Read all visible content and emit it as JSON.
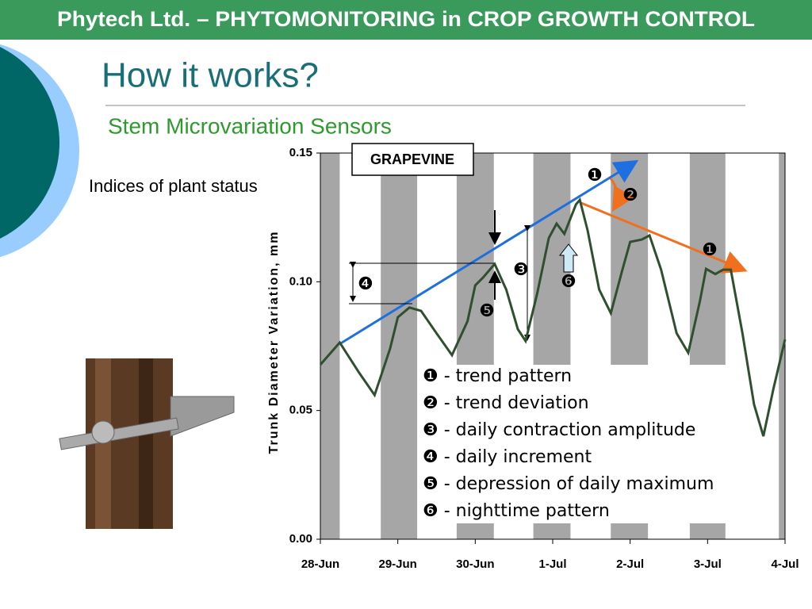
{
  "header": {
    "title": "Phytech Ltd. – PHYTOMONITORING in CROP GROWTH CONTROL"
  },
  "slide": {
    "title": "How it works?",
    "subtitle": "Stem Microvariation Sensors",
    "side_text": "Indices of plant status"
  },
  "chart_data": {
    "type": "line",
    "ylabel": "Trunk Diameter Variation, mm",
    "label_box": "GRAPEVINE",
    "color": "#2f4f2f",
    "x": [
      0,
      0.25,
      0.5,
      0.7,
      0.9,
      1.0,
      1.15,
      1.3,
      1.5,
      1.7,
      1.9,
      2.0,
      2.1,
      2.25,
      2.4,
      2.55,
      2.65,
      2.8,
      2.95,
      3.05,
      3.15,
      3.3,
      3.35,
      3.45,
      3.6,
      3.75,
      3.9,
      4.0,
      4.15,
      4.25,
      4.4,
      4.6,
      4.75,
      4.9,
      4.98,
      5.1,
      5.2,
      5.3,
      5.45,
      5.6,
      5.72,
      5.85,
      6.0
    ],
    "values": [
      0.0678,
      0.0764,
      0.0647,
      0.056,
      0.074,
      0.0862,
      0.09,
      0.0887,
      0.08,
      0.0715,
      0.0847,
      0.0986,
      0.1016,
      0.1069,
      0.097,
      0.0816,
      0.077,
      0.0955,
      0.117,
      0.1226,
      0.1186,
      0.13,
      0.1318,
      0.12,
      0.097,
      0.0878,
      0.1047,
      0.1155,
      0.1164,
      0.118,
      0.1047,
      0.08,
      0.0724,
      0.0924,
      0.105,
      0.103,
      0.1047,
      0.1047,
      0.08,
      0.0524,
      0.04,
      0.0585,
      0.0776
    ],
    "shaded_periods": [
      [
        0,
        0.25
      ],
      [
        0.78,
        1.25
      ],
      [
        1.76,
        2.24
      ],
      [
        2.75,
        3.23
      ],
      [
        3.75,
        4.23
      ],
      [
        4.77,
        5.23
      ],
      [
        5.92,
        6.0
      ]
    ],
    "xlim": [
      0,
      6
    ],
    "xticks": [
      {
        "value": 0,
        "label": "28-Jun"
      },
      {
        "value": 1,
        "label": "29-Jun"
      },
      {
        "value": 2,
        "label": "30-Jun"
      },
      {
        "value": 3,
        "label": "1-Jul"
      },
      {
        "value": 4,
        "label": "2-Jul"
      },
      {
        "value": 5,
        "label": "3-Jul"
      },
      {
        "value": 6,
        "label": "4-Jul"
      }
    ],
    "ylim": [
      0,
      0.15
    ],
    "yticks": [
      {
        "value": 0,
        "label": "0.00"
      },
      0.05,
      {
        "value": 0.1,
        "label": "0.10"
      },
      0.15
    ],
    "annotations": [
      "❶",
      "❷",
      "❸",
      "❹",
      "❺",
      "❻",
      "❶"
    ],
    "index_list": [
      "❶ - trend pattern",
      "❷ - trend deviation",
      "❸ - daily contraction amplitude",
      "❹ - daily increment",
      "❺ - depression of daily maximum",
      "❻ - nighttime pattern"
    ]
  }
}
